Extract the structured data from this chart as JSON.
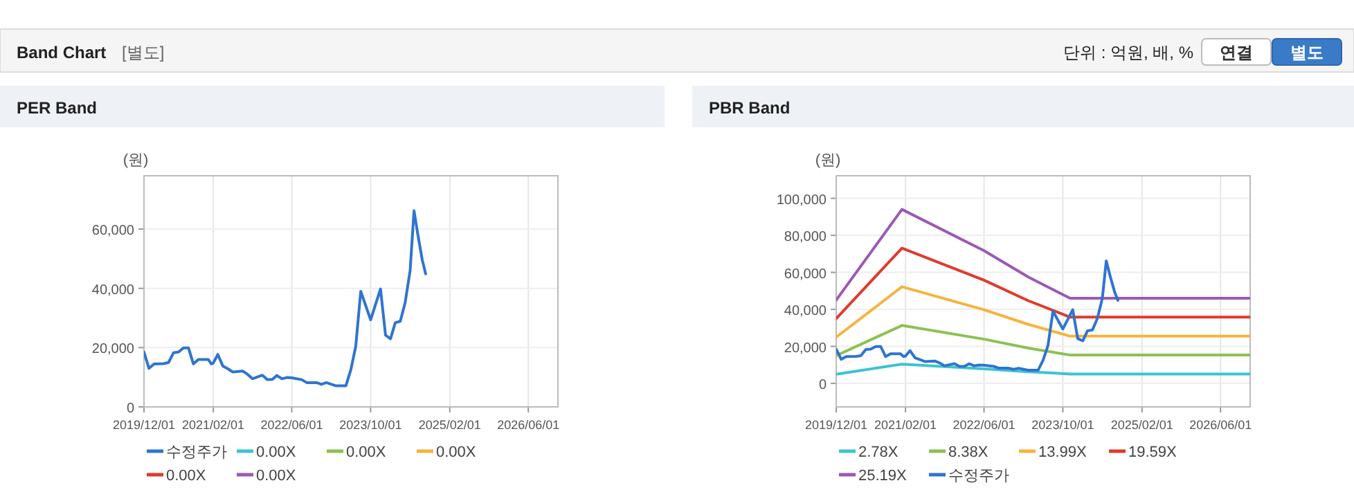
{
  "chart_data": [
    {
      "type": "other",
      "title": "Band Chart",
      "annotations": [
        "[별도]",
        "단위 : 억원, 배, %",
        "연결",
        "별도"
      ]
    },
    {
      "type": "line",
      "title": "PER Band",
      "ylabel": "(원)",
      "xlim": [
        "2019-12-01",
        "2026-12-01"
      ],
      "ylim": [
        0,
        78000
      ],
      "xticks": [
        {
          "value": "2019-12-01",
          "label": "2019/12/01"
        },
        {
          "value": "2021-02-01",
          "label": "2021/02/01"
        },
        {
          "value": "2022-06-01",
          "label": "2022/06/01"
        },
        {
          "value": "2023-10-01",
          "label": "2023/10/01"
        },
        {
          "value": "2025-02-01",
          "label": "2025/02/01"
        },
        {
          "value": "2026-06-01",
          "label": "2026/06/01"
        }
      ],
      "yticks": [
        {
          "value": 0,
          "label": "0"
        },
        {
          "value": 20000,
          "label": "20,000"
        },
        {
          "value": 40000,
          "label": "40,000"
        },
        {
          "value": 60000,
          "label": "60,000"
        }
      ],
      "grid": true,
      "legend": "bottom",
      "marker": "none",
      "line_style": "solid",
      "series": [
        {
          "name": "수정주가",
          "color": "#2f74d0",
          "x": [
            "2019-12-01",
            "2020-01-01",
            "2020-02-01",
            "2020-04-01",
            "2020-05-01",
            "2020-06-01",
            "2020-07-01",
            "2020-08-01",
            "2020-09-01",
            "2020-10-01",
            "2020-11-01",
            "2021-01-01",
            "2021-01-20",
            "2021-02-01",
            "2021-03-01",
            "2021-04-01",
            "2021-05-01",
            "2021-06-01",
            "2021-08-01",
            "2021-09-01",
            "2021-10-01",
            "2021-12-01",
            "2022-01-01",
            "2022-02-01",
            "2022-03-01",
            "2022-04-01",
            "2022-05-01",
            "2022-06-01",
            "2022-08-01",
            "2022-09-01",
            "2022-11-01",
            "2022-12-01",
            "2023-01-01",
            "2023-02-01",
            "2023-03-01",
            "2023-05-01",
            "2023-06-01",
            "2023-07-01",
            "2023-08-01",
            "2023-10-01",
            "2023-12-01",
            "2024-01-01",
            "2024-02-01",
            "2024-03-01",
            "2024-04-01",
            "2024-05-01",
            "2024-06-01",
            "2024-06-25",
            "2024-07-20",
            "2024-08-15",
            "2024-09-05"
          ],
          "values": [
            18500,
            13000,
            14500,
            14600,
            15000,
            18300,
            18500,
            19900,
            19900,
            14500,
            16000,
            16000,
            14500,
            14800,
            17700,
            13800,
            12900,
            11800,
            12100,
            11000,
            9500,
            10700,
            9200,
            9300,
            10600,
            9500,
            9900,
            9800,
            9200,
            8200,
            8200,
            7600,
            8200,
            7600,
            7100,
            7100,
            12600,
            20400,
            39000,
            29400,
            39800,
            24200,
            23000,
            28400,
            28900,
            35100,
            46000,
            66200,
            57700,
            49600,
            44900
          ]
        },
        {
          "name": "0.00X",
          "color": "#3cc3d2",
          "values": [
            null
          ]
        },
        {
          "name": "0.00X",
          "color": "#8cc152",
          "values": [
            null
          ]
        },
        {
          "name": "0.00X",
          "color": "#f6b43c",
          "values": [
            null
          ]
        },
        {
          "name": "0.00X",
          "color": "#e03a2e",
          "values": [
            null
          ]
        },
        {
          "name": "0.00X",
          "color": "#9b59b6",
          "values": [
            null
          ]
        }
      ]
    },
    {
      "type": "line",
      "title": "PBR Band",
      "ylabel": "(원)",
      "xlim": [
        "2019-12-01",
        "2026-12-01"
      ],
      "ylim": [
        -12700,
        112200
      ],
      "xticks": [
        {
          "value": "2019-12-01",
          "label": "2019/12/01"
        },
        {
          "value": "2021-02-01",
          "label": "2021/02/01"
        },
        {
          "value": "2022-06-01",
          "label": "2022/06/01"
        },
        {
          "value": "2023-10-01",
          "label": "2023/10/01"
        },
        {
          "value": "2025-02-01",
          "label": "2025/02/01"
        },
        {
          "value": "2026-06-01",
          "label": "2026/06/01"
        }
      ],
      "yticks": [
        {
          "value": 0,
          "label": "0"
        },
        {
          "value": 20000,
          "label": "20,000"
        },
        {
          "value": 40000,
          "label": "40,000"
        },
        {
          "value": 60000,
          "label": "60,000"
        },
        {
          "value": 80000,
          "label": "80,000"
        },
        {
          "value": 100000,
          "label": "100,000"
        }
      ],
      "x": [
        "2019-12-01",
        "2021-01-10",
        "2022-06-01",
        "2023-03-01",
        "2023-11-15",
        "2026-12-01"
      ],
      "grid": true,
      "legend": "bottom",
      "marker": "none",
      "line_style": "solid",
      "series": [
        {
          "name": "2.78X",
          "color": "#3cc3d2",
          "values": [
            5000,
            10400,
            7900,
            6300,
            5100,
            5100
          ]
        },
        {
          "name": "8.38X",
          "color": "#8cc152",
          "values": [
            15000,
            31300,
            23900,
            19100,
            15300,
            15300
          ]
        },
        {
          "name": "13.99X",
          "color": "#f6b43c",
          "values": [
            25000,
            52200,
            39800,
            31900,
            25500,
            25500
          ]
        },
        {
          "name": "19.59X",
          "color": "#e03a2e",
          "values": [
            35000,
            73100,
            55800,
            44700,
            35800,
            35800
          ]
        },
        {
          "name": "25.19X",
          "color": "#9b59b6",
          "values": [
            45000,
            94000,
            71700,
            57500,
            46000,
            46000
          ]
        },
        {
          "name": "수정주가",
          "color": "#2f74d0",
          "x": [
            "2019-12-01",
            "2020-01-01",
            "2020-02-01",
            "2020-04-01",
            "2020-05-01",
            "2020-06-01",
            "2020-07-01",
            "2020-08-01",
            "2020-09-01",
            "2020-10-01",
            "2020-11-01",
            "2021-01-01",
            "2021-01-20",
            "2021-02-01",
            "2021-03-01",
            "2021-04-01",
            "2021-05-01",
            "2021-06-01",
            "2021-08-01",
            "2021-09-01",
            "2021-10-01",
            "2021-12-01",
            "2022-01-01",
            "2022-02-01",
            "2022-03-01",
            "2022-04-01",
            "2022-05-01",
            "2022-06-01",
            "2022-08-01",
            "2022-09-01",
            "2022-11-01",
            "2022-12-01",
            "2023-01-01",
            "2023-02-01",
            "2023-03-01",
            "2023-05-01",
            "2023-06-01",
            "2023-07-01",
            "2023-08-01",
            "2023-10-01",
            "2023-12-01",
            "2024-01-01",
            "2024-02-01",
            "2024-03-01",
            "2024-04-01",
            "2024-05-01",
            "2024-06-01",
            "2024-06-25",
            "2024-07-20",
            "2024-08-15",
            "2024-09-05"
          ],
          "values": [
            18500,
            13000,
            14500,
            14600,
            15000,
            18300,
            18500,
            19900,
            19900,
            14500,
            16000,
            16000,
            14500,
            14800,
            17700,
            13800,
            12900,
            11800,
            12100,
            11000,
            9500,
            10700,
            9200,
            9300,
            10600,
            9500,
            9900,
            9800,
            9200,
            8200,
            8200,
            7600,
            8200,
            7600,
            7100,
            7100,
            12600,
            20400,
            39000,
            29400,
            39800,
            24200,
            23000,
            28400,
            28900,
            35100,
            46000,
            66200,
            57700,
            49600,
            44900
          ]
        }
      ]
    }
  ]
}
